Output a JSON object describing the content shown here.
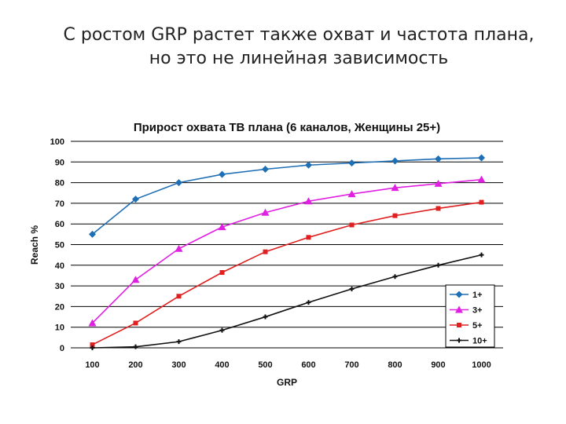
{
  "slide": {
    "title_line1": "С ростом GRP растет также охват и частота плана,",
    "title_line2": "но это не линейная зависимость"
  },
  "chart_data": {
    "type": "line",
    "title": "Прирост охвата ТВ плана (6 каналов, Женщины 25+)",
    "xlabel": "GRP",
    "ylabel": "Reach %",
    "x": [
      100,
      200,
      300,
      400,
      500,
      600,
      700,
      800,
      900,
      1000
    ],
    "ylim": [
      0,
      100
    ],
    "yticks": [
      0,
      10,
      20,
      30,
      40,
      50,
      60,
      70,
      80,
      90,
      100
    ],
    "grid": "horizontal",
    "legend": "bottom-right",
    "series": [
      {
        "name": "1+",
        "color": "#1f6fb5",
        "marker": "diamond",
        "values": [
          55,
          72,
          80,
          84,
          86.5,
          88.5,
          89.5,
          90.5,
          91.5,
          92
        ]
      },
      {
        "name": "3+",
        "color": "#e020e0",
        "marker": "triangle",
        "values": [
          12,
          33,
          48,
          58.5,
          65.5,
          71,
          74.5,
          77.5,
          79.5,
          81.5
        ]
      },
      {
        "name": "5+",
        "color": "#e02020",
        "marker": "square",
        "values": [
          1.5,
          12,
          25,
          36.5,
          46.5,
          53.5,
          59.5,
          64,
          67.5,
          70.5
        ]
      },
      {
        "name": "10+",
        "color": "#111111",
        "marker": "star",
        "values": [
          0,
          0.5,
          3,
          8.5,
          15,
          22,
          28.5,
          34.5,
          40,
          45
        ]
      }
    ]
  }
}
